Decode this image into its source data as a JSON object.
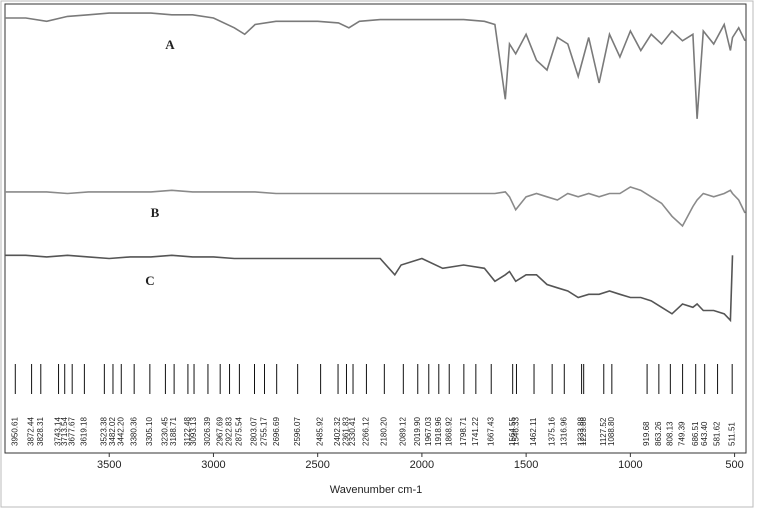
{
  "chart_data": {
    "type": "line",
    "x_label": "Wavenumber cm-1",
    "xlim": [
      4000,
      450
    ],
    "xticks": [
      3500,
      3000,
      2500,
      2000,
      1500,
      1000,
      500
    ],
    "ylim": [
      0,
      100
    ],
    "x": [
      4000,
      3900,
      3800,
      3700,
      3600,
      3500,
      3400,
      3300,
      3200,
      3100,
      3000,
      2900,
      2850,
      2800,
      2700,
      2600,
      2500,
      2400,
      2350,
      2300,
      2200,
      2130,
      2100,
      2000,
      1900,
      1800,
      1700,
      1650,
      1600,
      1580,
      1550,
      1500,
      1450,
      1400,
      1350,
      1300,
      1250,
      1200,
      1150,
      1100,
      1050,
      1000,
      950,
      900,
      850,
      800,
      750,
      700,
      680,
      650,
      600,
      550,
      520,
      510,
      480,
      450
    ],
    "series": [
      {
        "name": "A",
        "color": "#7a7a7a",
        "values": [
          96,
          96,
          95,
          96.5,
          97,
          97.5,
          97.5,
          97.5,
          97,
          97,
          96,
          93,
          91,
          94,
          95,
          95,
          95,
          94.5,
          93,
          95,
          95.5,
          95.5,
          95.5,
          95.5,
          95.5,
          95.5,
          95,
          94,
          71,
          88,
          85,
          91,
          83,
          80,
          90,
          88,
          78,
          90,
          76,
          91,
          84,
          92,
          86,
          91,
          88,
          92,
          89,
          91,
          65,
          92,
          88,
          94,
          86,
          90,
          93,
          89
        ]
      },
      {
        "name": "B",
        "color": "#8a8a8a",
        "values": [
          42.5,
          42.5,
          42.5,
          42,
          42.5,
          42.5,
          42.5,
          42.5,
          43,
          42.5,
          42.5,
          42.5,
          42.5,
          42.5,
          42,
          42,
          42,
          42,
          42,
          42,
          42,
          42,
          42,
          42,
          42,
          42,
          42,
          42,
          42.5,
          41,
          37,
          41,
          42,
          41,
          40,
          42,
          41,
          42,
          41,
          42,
          42,
          44,
          43,
          41,
          39,
          35,
          32,
          38,
          40,
          42,
          41,
          42,
          43,
          42,
          40,
          36
        ]
      },
      {
        "name": "C",
        "color": "#555555",
        "values": [
          23,
          23,
          22.5,
          23,
          22.5,
          22,
          22.5,
          22.5,
          23,
          22.5,
          22.5,
          22,
          22,
          22,
          22,
          22,
          22,
          22,
          22,
          22,
          22,
          17,
          20,
          22,
          19,
          20,
          19,
          15,
          17,
          18,
          15,
          17,
          17,
          14,
          13,
          12,
          10,
          11,
          11,
          12,
          11,
          10,
          10,
          9,
          7,
          5,
          8,
          7,
          8,
          6,
          6,
          5,
          3,
          23,
          null,
          null
        ]
      }
    ],
    "peaks": [
      3950.61,
      3872.44,
      3828.31,
      3743.14,
      3713.54,
      3677.67,
      3619.18,
      3523.38,
      3482.02,
      3442.2,
      3380.36,
      3305.1,
      3230.45,
      3188.71,
      3122.48,
      3093.13,
      3026.39,
      2967.69,
      2922.83,
      2875.54,
      2803.07,
      2755.17,
      2696.69,
      2596.07,
      2485.92,
      2402.32,
      2361.83,
      2330.41,
      2266.12,
      2180.2,
      2089.12,
      2019.9,
      1967.03,
      1918.96,
      1868.92,
      1798.71,
      1741.22,
      1667.43,
      1564.55,
      1546.33,
      1462.11,
      1375.16,
      1316.96,
      1233.88,
      1223.88,
      1127.52,
      1088.8,
      919.68,
      863.26,
      808.13,
      749.39,
      686.51,
      643.4,
      581.62,
      511.51
    ],
    "peak_labels": [
      "3950.61",
      "3872.44",
      "3828.31",
      "3743.14",
      "3713.54",
      "3677.67",
      "3619.18",
      "3523.38",
      "3482.02",
      "3442.20",
      "3380.36",
      "3305.10",
      "3230.45",
      "3188.71",
      "3122.48",
      "3093.13",
      "3026.39",
      "2967.69",
      "2922.83",
      "2875.54",
      "2803.07",
      "2755.17",
      "2696.69",
      "2596.07",
      "2485.92",
      "2402.32",
      "2361.83",
      "2330.41",
      "2266.12",
      "2180.20",
      "2089.12",
      "2019.90",
      "1967.03",
      "1918.96",
      "1868.92",
      "1798.71",
      "1741.22",
      "1667.43",
      "1564.55",
      "1546.33",
      "1462.11",
      "1375.16",
      "1316.96",
      "1233.88",
      "1223.88",
      "1127.52",
      "1088.80",
      "919.68",
      "863.26",
      "808.13",
      "749.39",
      "686.51",
      "643.40",
      "581.62",
      "511.51"
    ]
  }
}
